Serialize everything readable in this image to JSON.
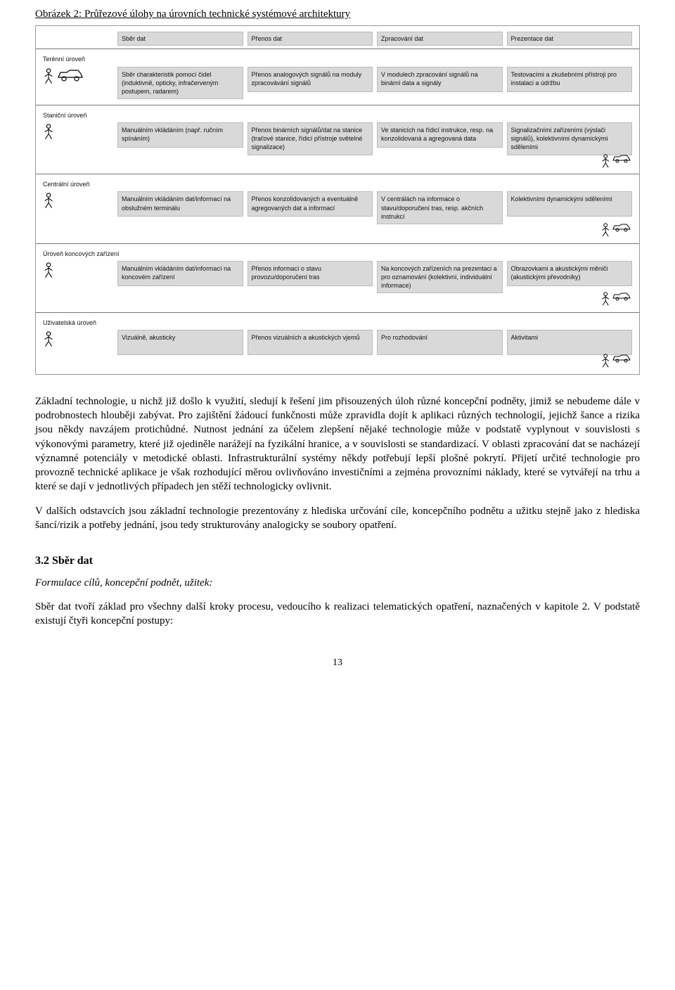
{
  "figure_title": "Obrázek 2: Průřezové úlohy na úrovních technické systémové architektury",
  "diagram": {
    "headers": [
      "",
      "Sběr dat",
      "Přenos dat",
      "Zpracování dat",
      "Prezentace dat"
    ],
    "levels": [
      {
        "label": "Terénní úroveň",
        "icon": "car-person",
        "cells": [
          "Sběr charakteristik pomocí čidel (induktivně, opticky, infračerveným postupem, radarem)",
          "Přenos analogových signálů na moduly zpracovávání signálů",
          "V modulech zpracování signálů na binární data a signály",
          "Testovacími a zkušebními přístroji pro instalaci a údržbu"
        ],
        "right_icon": null
      },
      {
        "label": "Staniční úroveň",
        "icon": "person",
        "cells": [
          "Manuálním vkládáním (např. ručním spínáním)",
          "Přenos binárních signálů/dat na stanice (traťové stanice, řídicí přístroje světelné signalizace)",
          "Ve stanicích na řídicí instrukce, resp. na konzolidovaná a agregovaná data",
          "Signalizačními zařízeními (výslači signálů), kolektivními dynamickými sděleními"
        ],
        "right_icon": "person-car"
      },
      {
        "label": "Centrální úroveň",
        "icon": "person",
        "cells": [
          "Manuálním vkládáním dat/informací na obslužném terminálu",
          "Přenos konzolidovaných a eventuálně agregovaných dat a informací",
          "V centrálách na informace o stavu/doporučení tras, resp. akčních instrukcí",
          "Kolektivními dynamickými sděleními"
        ],
        "right_icon": "person-car"
      },
      {
        "label": "Úroveň koncových zařízení",
        "icon": "person",
        "cells": [
          "Manuálním vkládáním dat/informací na koncovém zařízení",
          "Přenos informací o stavu provozu/doporučení tras",
          "Na koncových zařízeních na prezentaci a pro oznamování (kolektivní, individuální informace)",
          "Obrazovkami a akustickými měniči (akustickými převodníky)"
        ],
        "right_icon": "person-car"
      },
      {
        "label": "Uživatelská úroveň",
        "icon": "person",
        "cells": [
          "Vizuálně, akusticky",
          "Přenos vizuálních a akustických vjemů",
          "Pro rozhodování",
          "Aktivitami"
        ],
        "right_icon": "person-car"
      }
    ],
    "colors": {
      "cell_bg": "#d9d9d9",
      "cell_border": "#bbbbbb",
      "divider": "#777777",
      "frame": "#9a9a9a",
      "text": "#111111"
    }
  },
  "para1": "Základní technologie, u nichž již došlo k využití, sledují k řešení jim přisouzených úloh různé koncepční podněty, jimiž se nebudeme dále v podrobnostech hlouběji zabývat. Pro zajištění žádoucí funkčnosti může zpravidla dojít k aplikaci různých technologií, jejichž šance a rizika jsou někdy navzájem protichůdné. Nutnost jednání za účelem zlepšení nějaké technologie může v podstatě vyplynout v souvislosti s výkonovými parametry, které již ojediněle narážejí na fyzikální hranice, a v souvislosti se standardizací. V oblasti zpracování dat se nacházejí významné potenciály v metodické oblasti. Infrastrukturální systémy někdy potřebují lepší plošné pokrytí. Přijetí určité technologie pro provozně technické aplikace je však rozhodující měrou ovlivňováno investičními a zejména provozními náklady, které se vytvářejí na trhu a které se dají v jednotlivých případech jen stěží technologicky ovlivnit.",
  "para2": "V dalších odstavcích jsou základní technologie prezentovány z hlediska určování cíle, koncepčního podnětu a užitku stejně jako z hlediska šancí/rizik a potřeby jednání, jsou tedy strukturovány analogicky se soubory opatření.",
  "section_heading": "3.2 Sběr dat",
  "section_sub": "Formulace cílů, koncepční podnět, užitek:",
  "para3": "Sběr dat tvoří základ pro všechny další kroky procesu, vedoucího k realizaci telematických opatření, naznačených v kapitole 2. V podstatě existují čtyři koncepční postupy:",
  "page_number": "13"
}
